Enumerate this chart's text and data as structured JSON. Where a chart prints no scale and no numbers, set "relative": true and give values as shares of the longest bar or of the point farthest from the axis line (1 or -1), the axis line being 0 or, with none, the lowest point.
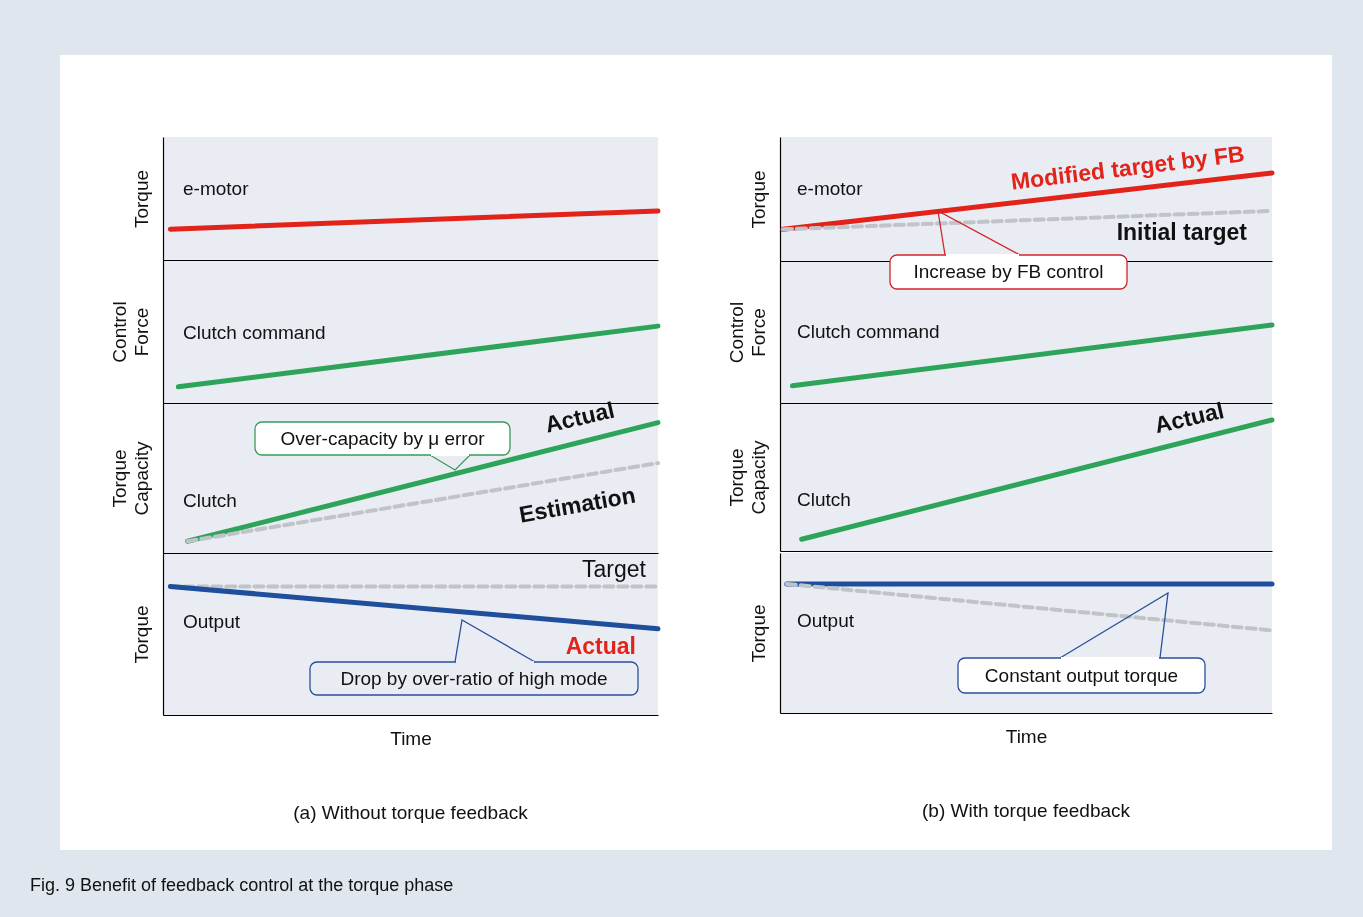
{
  "chart_data": [
    {
      "type": "line",
      "relative": true,
      "ylabel": "Torque",
      "categories": [
        null,
        null
      ],
      "annotations": [
        "e-motor"
      ],
      "series": [
        {
          "color": "#e2231a",
          "values": [
            0.63,
            1
          ]
        }
      ]
    },
    {
      "type": "line",
      "relative": true,
      "ylabel": "Control Force",
      "categories": [
        null,
        null
      ],
      "annotations": [
        "Clutch command"
      ],
      "series": [
        {
          "color": "#2ea45a",
          "values": [
            0.21,
            1
          ]
        }
      ]
    },
    {
      "type": "line",
      "relative": true,
      "ylabel": "Torque Capacity",
      "categories": [
        null,
        null
      ],
      "annotations": [
        "Clutch",
        "Over-capacity by μ error"
      ],
      "series": [
        {
          "name": "Actual",
          "color": "#2ea45a",
          "values": [
            0.09,
            1
          ]
        },
        {
          "name": "Estimation",
          "color": "#c0c4c8",
          "line_style": "dashed",
          "values": [
            0.09,
            0.69
          ]
        }
      ]
    },
    {
      "type": "line",
      "relative": true,
      "title": "(a) Without torque feedback",
      "xlabel": "Time",
      "ylabel": "Torque",
      "categories": [
        null,
        null
      ],
      "annotations": [
        "Output",
        "Drop by over-ratio of high mode",
        "Fig. 9  Benefit of feedback control at the torque phase"
      ],
      "series": [
        {
          "name": "Target",
          "color": "#c0c4c8",
          "line_style": "dashed",
          "values": [
            1,
            1
          ]
        },
        {
          "name": "Actual",
          "color": "#1f4e9c",
          "values": [
            1,
            0.67
          ]
        }
      ]
    },
    {
      "type": "line",
      "relative": true,
      "ylabel": "Torque",
      "categories": [
        null,
        null
      ],
      "annotations": [
        "e-motor",
        "Increase by FB control"
      ],
      "series": [
        {
          "name": "Modified target by FB",
          "color": "#e2231a",
          "values": [
            0.36,
            1
          ]
        },
        {
          "name": "Initial target",
          "color": "#c0c4c8",
          "line_style": "dashed",
          "values": [
            0.36,
            0.57
          ]
        }
      ]
    },
    {
      "type": "line",
      "relative": true,
      "ylabel": "Control Force",
      "categories": [
        null,
        null
      ],
      "annotations": [
        "Clutch command"
      ],
      "series": [
        {
          "color": "#2ea45a",
          "values": [
            0.22,
            1
          ]
        }
      ]
    },
    {
      "type": "line",
      "relative": true,
      "ylabel": "Torque Capacity",
      "categories": [
        null,
        null
      ],
      "annotations": [
        "Clutch"
      ],
      "series": [
        {
          "name": "Actual",
          "color": "#2ea45a",
          "values": [
            0.09,
            1
          ]
        }
      ]
    },
    {
      "type": "line",
      "relative": true,
      "title": "(b) With torque feedback",
      "xlabel": "Time",
      "ylabel": "Torque",
      "categories": [
        null,
        null
      ],
      "annotations": [
        "Output",
        "Constant output torque"
      ],
      "series": [
        {
          "color": "#1f4e9c",
          "values": [
            1,
            1
          ]
        },
        {
          "color": "#c0c4c8",
          "line_style": "dashed",
          "values": [
            1,
            0.64
          ]
        }
      ]
    }
  ]
}
